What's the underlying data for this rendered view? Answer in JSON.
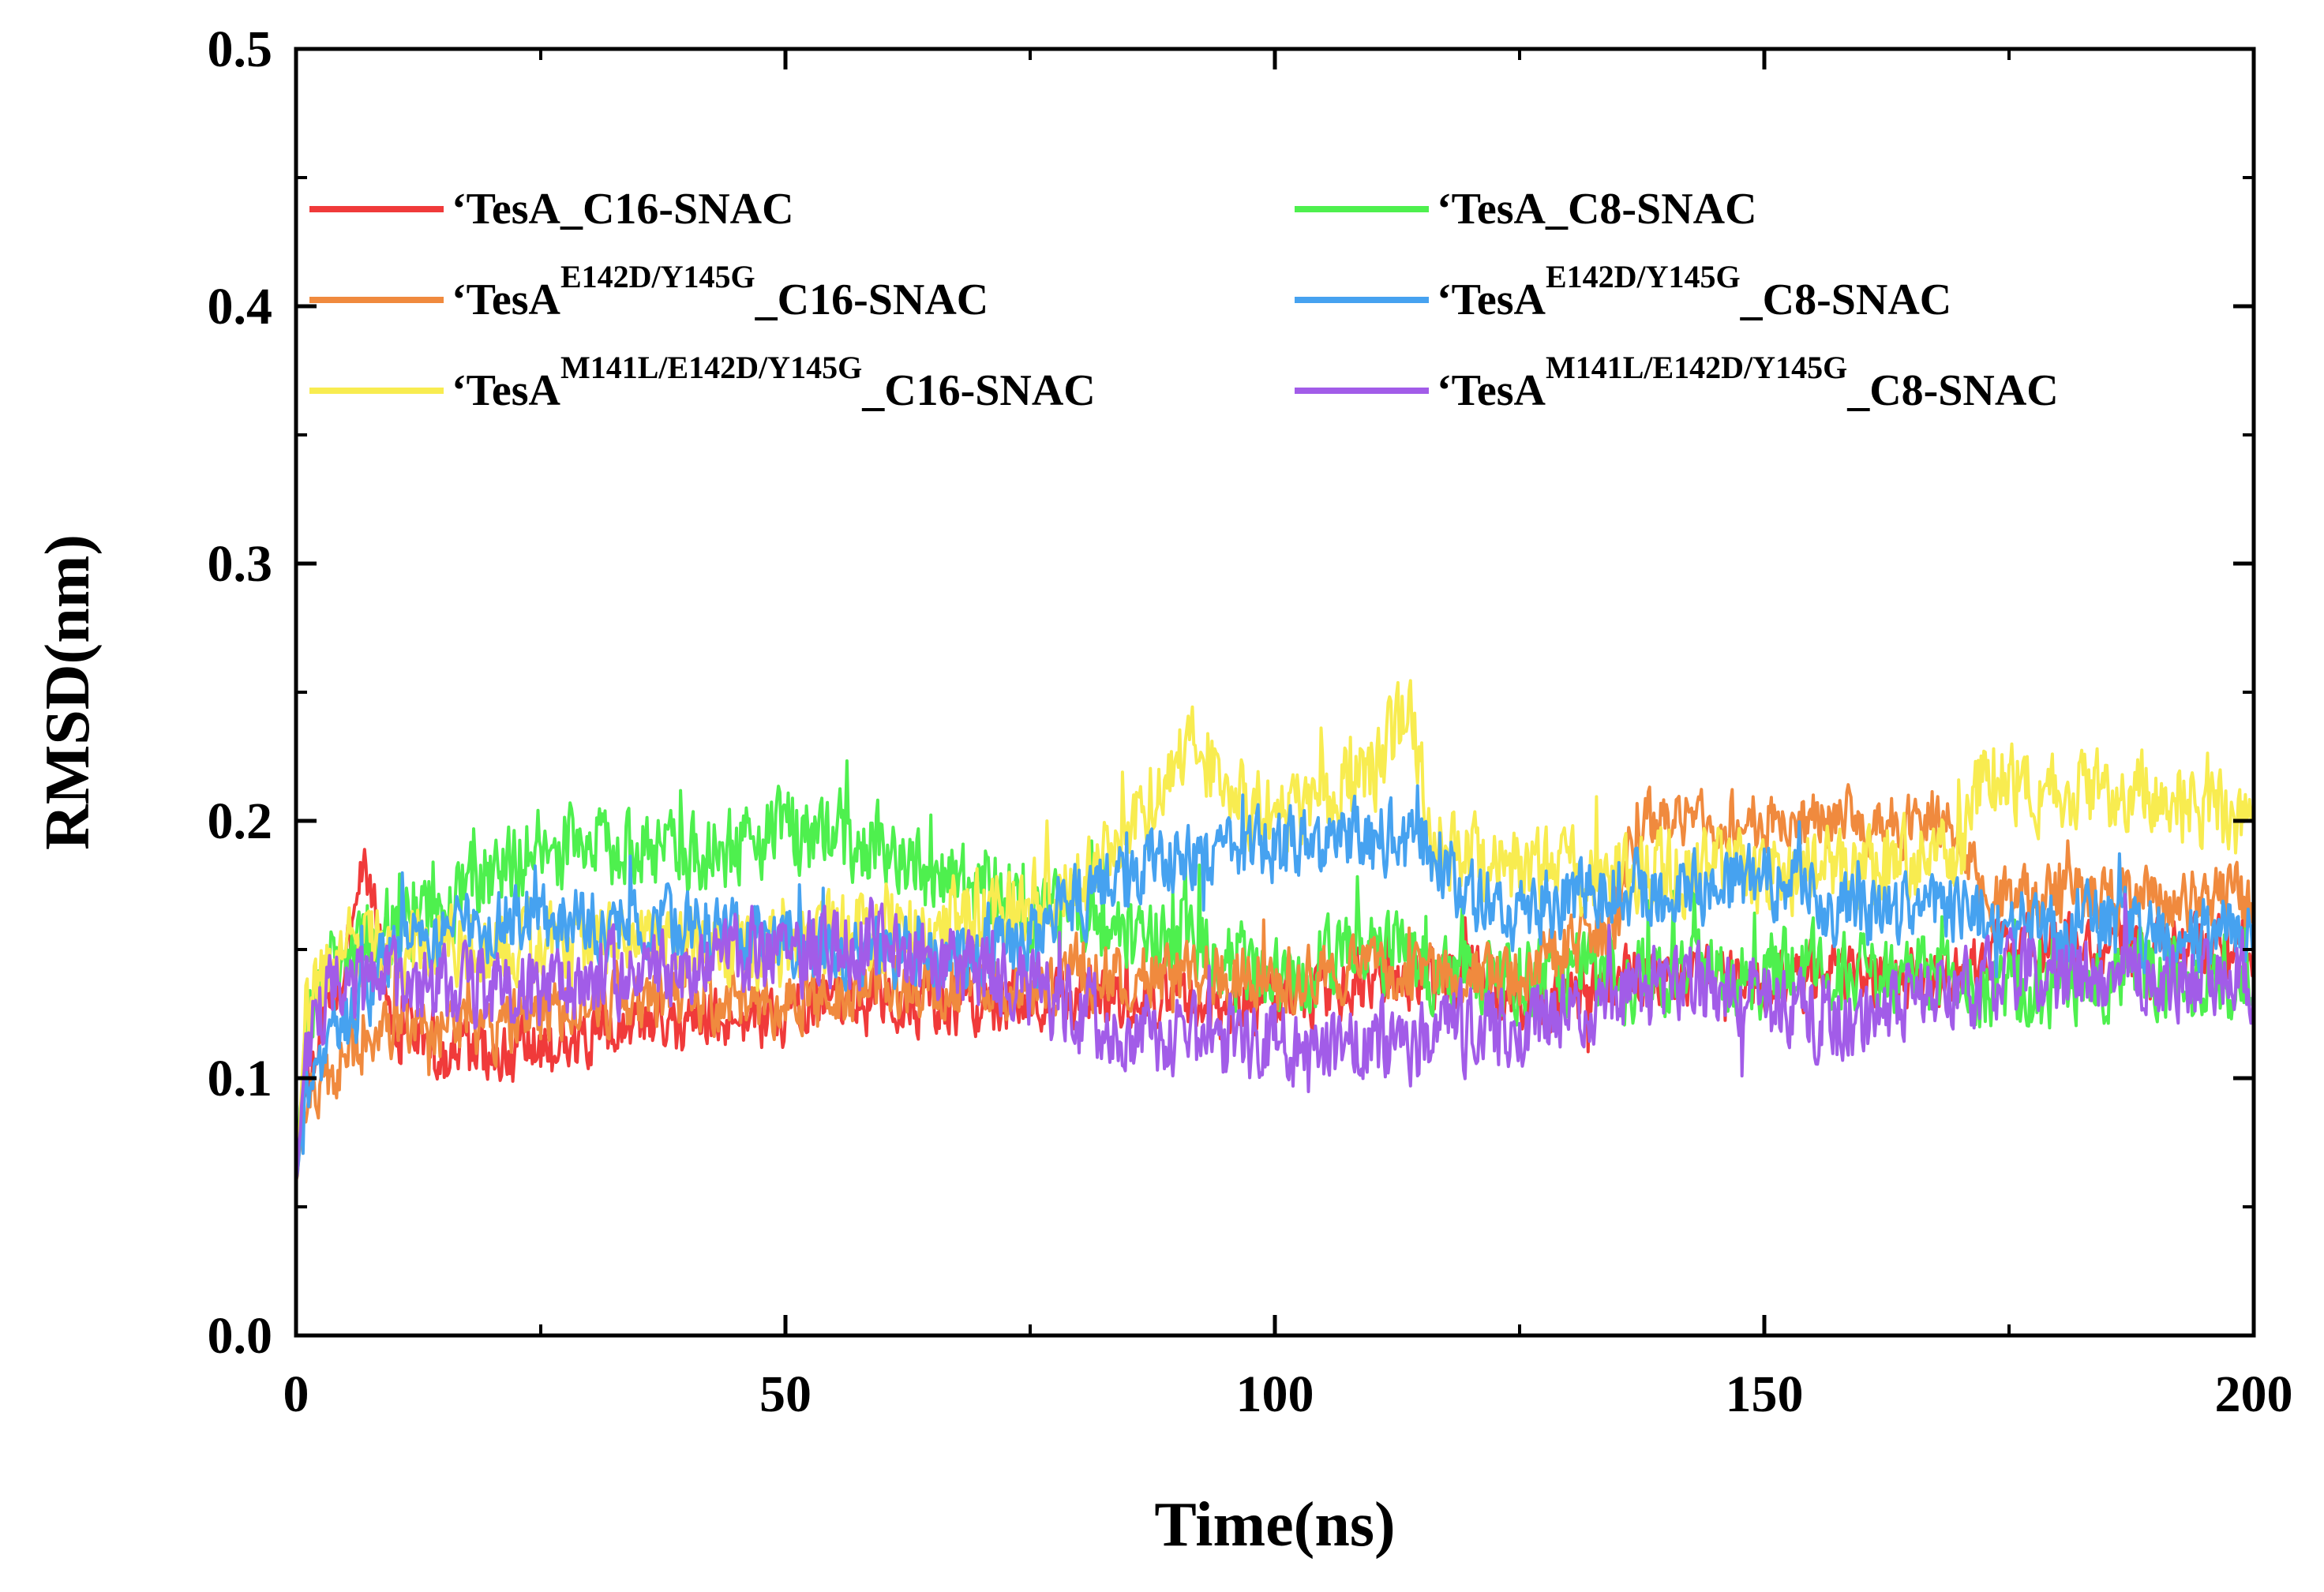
{
  "chart_data": {
    "type": "line",
    "title": "",
    "xlabel": "Time(ns)",
    "ylabel": "RMSD(nm)",
    "xlim": [
      0,
      200
    ],
    "ylim": [
      0.0,
      0.5
    ],
    "xticks": [
      0,
      50,
      100,
      150,
      200
    ],
    "xtick_labels": [
      "0",
      "50",
      "100",
      "150",
      "200"
    ],
    "yticks": [
      0.0,
      0.1,
      0.2,
      0.3,
      0.4,
      0.5
    ],
    "ytick_labels": [
      "0.0",
      "0.1",
      "0.2",
      "0.3",
      "0.4",
      "0.5"
    ],
    "grid": false,
    "legend_position": "top",
    "series": [
      {
        "name": "'TesA_C16-SNAC",
        "legend": {
          "prefix": "‘TesA",
          "sup": "",
          "suffix": "_C16-SNAC"
        },
        "color": "#f03a3a",
        "x": [
          0,
          1,
          3,
          5,
          7,
          10,
          15,
          20,
          25,
          30,
          35,
          40,
          45,
          50,
          55,
          60,
          65,
          70,
          75,
          80,
          85,
          90,
          95,
          100,
          105,
          110,
          115,
          120,
          125,
          130,
          135,
          140,
          145,
          150,
          155,
          160,
          165,
          170,
          175,
          180,
          185,
          190,
          195,
          200
        ],
        "values": [
          0.06,
          0.1,
          0.12,
          0.14,
          0.19,
          0.12,
          0.11,
          0.11,
          0.11,
          0.115,
          0.12,
          0.12,
          0.125,
          0.125,
          0.13,
          0.13,
          0.13,
          0.13,
          0.13,
          0.13,
          0.13,
          0.135,
          0.13,
          0.13,
          0.13,
          0.14,
          0.14,
          0.14,
          0.13,
          0.13,
          0.14,
          0.14,
          0.14,
          0.14,
          0.14,
          0.14,
          0.14,
          0.14,
          0.15,
          0.15,
          0.15,
          0.15,
          0.15,
          0.15
        ],
        "noise": 0.007
      },
      {
        "name": "'TesA_C8-SNAC",
        "legend": {
          "prefix": "‘TesA",
          "sup": "",
          "suffix": "_C8-SNAC"
        },
        "color": "#4ef04e",
        "x": [
          0,
          1,
          3,
          5,
          10,
          15,
          20,
          25,
          30,
          35,
          40,
          45,
          50,
          55,
          60,
          65,
          70,
          75,
          80,
          85,
          90,
          95,
          100,
          105,
          110,
          115,
          120,
          125,
          130,
          135,
          140,
          145,
          150,
          155,
          160,
          165,
          170,
          175,
          180,
          185,
          190,
          195,
          200
        ],
        "values": [
          0.06,
          0.12,
          0.14,
          0.15,
          0.16,
          0.17,
          0.18,
          0.19,
          0.19,
          0.19,
          0.185,
          0.19,
          0.195,
          0.195,
          0.19,
          0.18,
          0.175,
          0.165,
          0.16,
          0.155,
          0.15,
          0.145,
          0.14,
          0.145,
          0.15,
          0.145,
          0.14,
          0.14,
          0.14,
          0.14,
          0.14,
          0.14,
          0.14,
          0.145,
          0.14,
          0.14,
          0.135,
          0.135,
          0.135,
          0.14,
          0.14,
          0.14,
          0.14
        ],
        "noise": 0.009
      },
      {
        "name": "'TesAE142D/Y145G_C16-SNAC",
        "legend": {
          "prefix": "‘TesA",
          "sup": "E142D/Y145G",
          "suffix": "_C16-SNAC"
        },
        "color": "#f08a3e",
        "x": [
          0,
          1,
          3,
          5,
          10,
          15,
          20,
          25,
          30,
          35,
          40,
          45,
          50,
          55,
          60,
          65,
          70,
          75,
          80,
          85,
          90,
          95,
          100,
          105,
          110,
          115,
          120,
          125,
          130,
          135,
          137,
          140,
          145,
          150,
          155,
          160,
          165,
          170,
          172,
          175,
          180,
          185,
          190,
          195,
          200
        ],
        "values": [
          0.06,
          0.09,
          0.1,
          0.11,
          0.12,
          0.12,
          0.12,
          0.125,
          0.13,
          0.13,
          0.13,
          0.13,
          0.13,
          0.13,
          0.135,
          0.135,
          0.135,
          0.135,
          0.14,
          0.14,
          0.14,
          0.14,
          0.14,
          0.14,
          0.14,
          0.14,
          0.14,
          0.14,
          0.15,
          0.16,
          0.2,
          0.2,
          0.2,
          0.2,
          0.2,
          0.2,
          0.2,
          0.195,
          0.17,
          0.17,
          0.17,
          0.17,
          0.17,
          0.17,
          0.17
        ],
        "noise": 0.007
      },
      {
        "name": "'TesAE142D/Y145G_C8-SNAC",
        "legend": {
          "prefix": "‘TesA",
          "sup": "E142D/Y145G",
          "suffix": "_C8-SNAC"
        },
        "color": "#46a2f0",
        "x": [
          0,
          1,
          3,
          5,
          10,
          15,
          20,
          25,
          30,
          35,
          40,
          45,
          50,
          55,
          60,
          65,
          70,
          75,
          80,
          85,
          90,
          95,
          100,
          105,
          110,
          115,
          120,
          125,
          130,
          135,
          140,
          145,
          150,
          155,
          160,
          165,
          170,
          175,
          180,
          185,
          190,
          195,
          200
        ],
        "values": [
          0.06,
          0.1,
          0.11,
          0.12,
          0.15,
          0.155,
          0.16,
          0.16,
          0.16,
          0.16,
          0.16,
          0.155,
          0.155,
          0.15,
          0.15,
          0.15,
          0.15,
          0.155,
          0.17,
          0.18,
          0.185,
          0.185,
          0.19,
          0.19,
          0.195,
          0.19,
          0.17,
          0.165,
          0.17,
          0.175,
          0.17,
          0.175,
          0.18,
          0.17,
          0.165,
          0.165,
          0.165,
          0.16,
          0.16,
          0.16,
          0.155,
          0.155,
          0.155
        ],
        "noise": 0.008
      },
      {
        "name": "'TesAM141L/E142D/Y145G_C16-SNAC",
        "legend": {
          "prefix": "‘TesA",
          "sup": "M141L/E142D/Y145G",
          "suffix": "_C16-SNAC"
        },
        "color": "#f8ec50",
        "x": [
          0,
          1,
          3,
          5,
          10,
          15,
          20,
          25,
          30,
          35,
          40,
          45,
          50,
          55,
          60,
          65,
          70,
          75,
          80,
          85,
          90,
          92,
          95,
          100,
          105,
          110,
          114,
          116,
          120,
          125,
          130,
          135,
          140,
          145,
          150,
          155,
          160,
          165,
          170,
          172,
          175,
          180,
          185,
          190,
          195,
          200
        ],
        "values": [
          0.06,
          0.12,
          0.14,
          0.15,
          0.15,
          0.15,
          0.15,
          0.15,
          0.15,
          0.15,
          0.15,
          0.15,
          0.15,
          0.155,
          0.16,
          0.16,
          0.165,
          0.17,
          0.175,
          0.2,
          0.22,
          0.235,
          0.21,
          0.2,
          0.21,
          0.22,
          0.245,
          0.19,
          0.185,
          0.18,
          0.18,
          0.18,
          0.18,
          0.18,
          0.18,
          0.18,
          0.18,
          0.185,
          0.185,
          0.215,
          0.215,
          0.215,
          0.21,
          0.21,
          0.205,
          0.2
        ],
        "noise": 0.009
      },
      {
        "name": "'TesAM141L/E142D/Y145G_C8-SNAC",
        "legend": {
          "prefix": "‘TesA",
          "sup": "M141L/E142D/Y145G",
          "suffix": "_C8-SNAC"
        },
        "color": "#a25ce8",
        "x": [
          0,
          1,
          3,
          5,
          10,
          15,
          20,
          25,
          30,
          35,
          40,
          45,
          50,
          55,
          60,
          65,
          70,
          75,
          80,
          85,
          90,
          95,
          100,
          105,
          110,
          115,
          120,
          125,
          130,
          135,
          140,
          145,
          150,
          155,
          160,
          165,
          170,
          175,
          180,
          185,
          190,
          195,
          200
        ],
        "values": [
          0.06,
          0.11,
          0.13,
          0.135,
          0.135,
          0.135,
          0.135,
          0.135,
          0.14,
          0.14,
          0.145,
          0.15,
          0.15,
          0.15,
          0.155,
          0.145,
          0.14,
          0.135,
          0.125,
          0.12,
          0.115,
          0.115,
          0.115,
          0.11,
          0.115,
          0.115,
          0.12,
          0.12,
          0.125,
          0.13,
          0.135,
          0.135,
          0.13,
          0.125,
          0.12,
          0.13,
          0.135,
          0.14,
          0.14,
          0.14,
          0.14,
          0.14,
          0.14
        ],
        "noise": 0.009
      }
    ]
  }
}
